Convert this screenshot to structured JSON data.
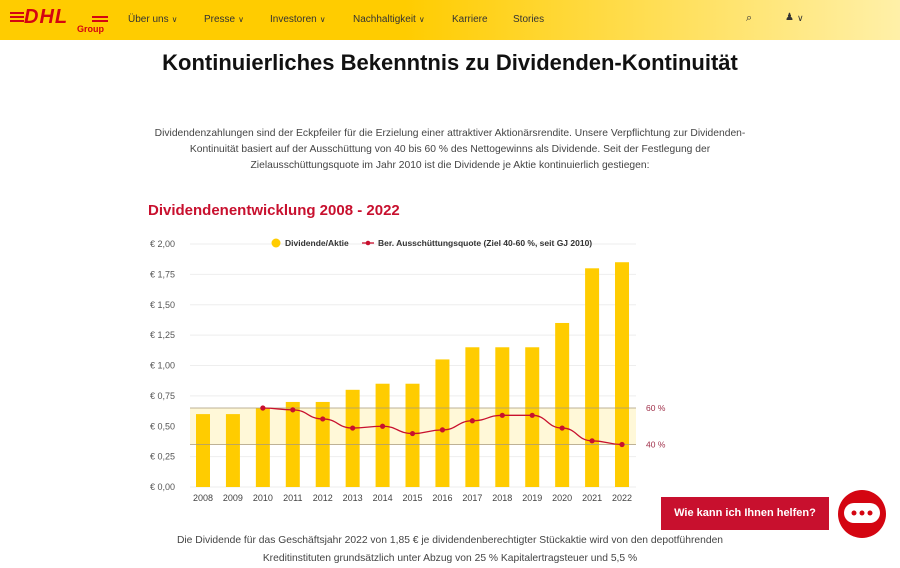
{
  "header": {
    "logo": "DHL Group",
    "nav": [
      {
        "label": "Über uns",
        "dropdown": true
      },
      {
        "label": "Presse",
        "dropdown": true
      },
      {
        "label": "Investoren",
        "dropdown": true
      },
      {
        "label": "Nachhaltigkeit",
        "dropdown": true
      },
      {
        "label": "Karriere",
        "dropdown": false
      },
      {
        "label": "Stories",
        "dropdown": false
      }
    ],
    "icons": [
      "search-icon",
      "user-icon",
      "chevron-down-icon"
    ]
  },
  "title": "Kontinuierliches Bekenntnis zu Dividenden-Kontinuität",
  "intro": "Dividendenzahlungen sind der Eckpfeiler für die Erzielung einer attraktiver Aktionärsrendite. Unsere Verpflichtung zur Dividenden-Kontinuität basiert auf der Ausschüttung von 40 bis 60 % des Nettogewinns als Dividende. Seit der Festlegung der Zielausschüttungsquote im Jahr 2010 ist die Dividende je Aktie kontinuierlich gestiegen:",
  "section_title": "Dividendenentwicklung 2008 - 2022",
  "chart_data": {
    "type": "bar+line",
    "categories": [
      "2008",
      "2009",
      "2010",
      "2011",
      "2012",
      "2013",
      "2014",
      "2015",
      "2016",
      "2017",
      "2018",
      "2019",
      "2020",
      "2021",
      "2022"
    ],
    "series": [
      {
        "name": "Dividende/Aktie",
        "type": "bar",
        "unit": "€",
        "values": [
          0.6,
          0.6,
          0.65,
          0.7,
          0.7,
          0.8,
          0.85,
          0.85,
          1.05,
          1.15,
          1.15,
          1.15,
          1.35,
          1.8,
          1.85
        ],
        "color": "#ffcc00"
      },
      {
        "name": "Ber. Ausschüttungsquote (Ziel 40-60 %, seit GJ 2010)",
        "type": "line",
        "unit": "%",
        "values": [
          null,
          null,
          60,
          59,
          54,
          49,
          50,
          46,
          48,
          53,
          56,
          56,
          49,
          42,
          40
        ],
        "color": "#c8102e"
      }
    ],
    "y_ticks": [
      "€ 0,00",
      "€ 0,25",
      "€ 0,50",
      "€ 0,75",
      "€ 1,00",
      "€ 1,25",
      "€ 1,50",
      "€ 1,75",
      "€ 2,00"
    ],
    "ylim": [
      0,
      2
    ],
    "target_band": {
      "low": 40,
      "high": 60,
      "labels": [
        "40 %",
        "60 %"
      ]
    },
    "legend": "top",
    "grid": true
  },
  "footer_text": "Die Dividende für das Geschäftsjahr 2022 von 1,85 € je dividendenberechtigter Stückaktie wird von den depotführenden Kreditinstituten grundsätzlich unter Abzug von 25 % Kapitalertragsteuer und 5,5 %",
  "chat": {
    "label": "Wie kann ich Ihnen helfen?"
  },
  "colors": {
    "brand_yellow": "#ffcc00",
    "brand_red": "#d40511"
  }
}
